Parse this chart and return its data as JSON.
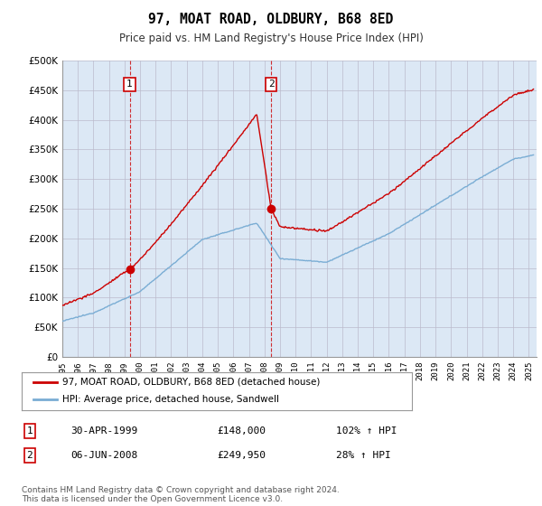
{
  "title": "97, MOAT ROAD, OLDBURY, B68 8ED",
  "subtitle": "Price paid vs. HM Land Registry's House Price Index (HPI)",
  "ylabel_ticks": [
    "£0",
    "£50K",
    "£100K",
    "£150K",
    "£200K",
    "£250K",
    "£300K",
    "£350K",
    "£400K",
    "£450K",
    "£500K"
  ],
  "ytick_vals": [
    0,
    50000,
    100000,
    150000,
    200000,
    250000,
    300000,
    350000,
    400000,
    450000,
    500000
  ],
  "xlim_start": 1995.0,
  "xlim_end": 2025.5,
  "ylim": [
    0,
    500000
  ],
  "plot_bg": "#dce8f5",
  "sale1_date": 1999.33,
  "sale1_price": 148000,
  "sale2_date": 2008.43,
  "sale2_price": 249950,
  "legend_label_red": "97, MOAT ROAD, OLDBURY, B68 8ED (detached house)",
  "legend_label_blue": "HPI: Average price, detached house, Sandwell",
  "table_row1": [
    "1",
    "30-APR-1999",
    "£148,000",
    "102% ↑ HPI"
  ],
  "table_row2": [
    "2",
    "06-JUN-2008",
    "£249,950",
    "28% ↑ HPI"
  ],
  "footnote": "Contains HM Land Registry data © Crown copyright and database right 2024.\nThis data is licensed under the Open Government Licence v3.0.",
  "red_color": "#cc0000",
  "blue_color": "#7aadd4"
}
